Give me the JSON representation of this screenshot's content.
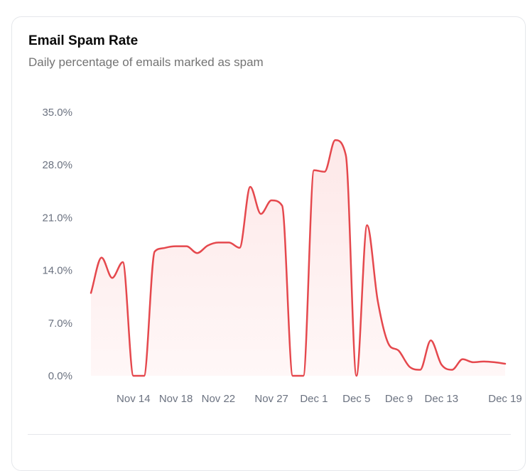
{
  "card": {
    "title": "Email Spam Rate",
    "subtitle": "Daily percentage of emails marked as spam"
  },
  "colors": {
    "line": "#e5484d",
    "fill_top": "#fde8e8",
    "fill_bottom": "#fff7f7"
  },
  "chart_data": {
    "type": "area",
    "title": "Email Spam Rate",
    "subtitle": "Daily percentage of emails marked as spam",
    "xlabel": "",
    "ylabel": "",
    "ylim": [
      0,
      35
    ],
    "yticks": [
      0,
      7,
      14,
      21,
      28,
      35
    ],
    "ytick_labels": [
      "0.0%",
      "7.0%",
      "14.0%",
      "21.0%",
      "28.0%",
      "35.0%"
    ],
    "xticks": [
      "Nov 14",
      "Nov 18",
      "Nov 22",
      "Nov 27",
      "Dec 1",
      "Dec 5",
      "Dec 9",
      "Dec 13",
      "Dec 19"
    ],
    "grid": false,
    "series": [
      {
        "values": [
          [
            "Nov 10",
            11.0
          ],
          [
            "Nov 11",
            15.7
          ],
          [
            "Nov 12",
            13.0
          ],
          [
            "Nov 13",
            15.1
          ],
          [
            "Nov 14",
            0.0
          ],
          [
            "Nov 15",
            0.0
          ],
          [
            "Nov 16",
            16.5
          ],
          [
            "Nov 17",
            17.0
          ],
          [
            "Nov 18",
            17.2
          ],
          [
            "Nov 19",
            17.2
          ],
          [
            "Nov 20",
            16.3
          ],
          [
            "Nov 21",
            17.3
          ],
          [
            "Nov 22",
            17.7
          ],
          [
            "Nov 23",
            17.7
          ],
          [
            "Nov 24",
            17.0
          ],
          [
            "Nov 25",
            25.1
          ],
          [
            "Nov 26",
            21.5
          ],
          [
            "Nov 27",
            23.3
          ],
          [
            "Nov 28",
            22.6
          ],
          [
            "Nov 29",
            0.0
          ],
          [
            "Nov 30",
            0.0
          ],
          [
            "Dec 1",
            27.3
          ],
          [
            "Dec 2",
            27.1
          ],
          [
            "Dec 3",
            31.3
          ],
          [
            "Dec 4",
            29.3
          ],
          [
            "Dec 5",
            0.0
          ],
          [
            "Dec 6",
            20.0
          ],
          [
            "Dec 7",
            10.0
          ],
          [
            "Dec 8",
            4.3
          ],
          [
            "Dec 9",
            3.3
          ],
          [
            "Dec 10",
            1.2
          ],
          [
            "Dec 11",
            0.8
          ],
          [
            "Dec 12",
            4.7
          ],
          [
            "Dec 13",
            1.5
          ],
          [
            "Dec 14",
            0.8
          ],
          [
            "Dec 15",
            2.2
          ],
          [
            "Dec 16",
            1.8
          ],
          [
            "Dec 17",
            1.9
          ],
          [
            "Dec 18",
            1.8
          ],
          [
            "Dec 19",
            1.6
          ]
        ]
      }
    ]
  }
}
